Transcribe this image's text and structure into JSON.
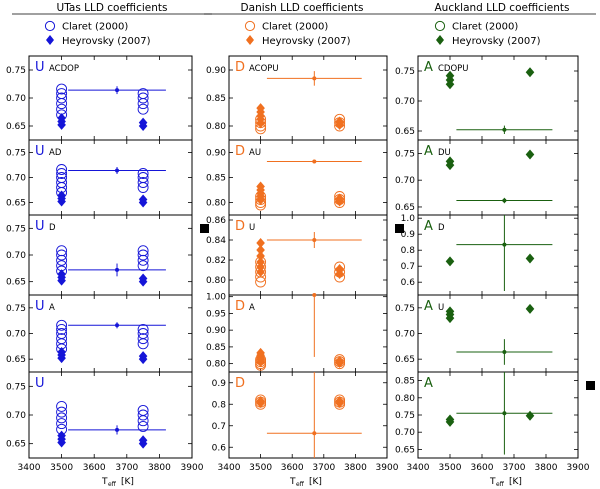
{
  "chart_data": {
    "type": "scatter",
    "description_panels": "3 columns x 5 rows of scatter panels with error bars",
    "xlabel": "T_eff [K]",
    "xlabel_main": "T",
    "xlabel_sub": "eff",
    "xlabel_unit": "[K]",
    "xlim": [
      3400,
      3900
    ],
    "xticks": [
      3400,
      3500,
      3600,
      3700,
      3800,
      3900
    ],
    "columns": [
      {
        "title": "UTas LLD coefficients",
        "letter": "U",
        "color": "#1515d8",
        "legend": [
          "Claret (2000)",
          "Heyrovsky (2007)"
        ],
        "panels": [
          {
            "label": "ACDOP",
            "ylim": [
              0.625,
              0.775
            ],
            "yticks": [
              0.65,
              0.7,
              0.75
            ],
            "claret": {
              "3500": [
                0.67,
                0.68,
                0.69,
                0.7,
                0.708,
                0.716
              ],
              "3750": [
                0.68,
                0.69,
                0.7,
                0.708
              ]
            },
            "heyrovsky": {
              "3500": [
                0.652,
                0.658,
                0.664
              ],
              "3750": [
                0.65,
                0.656
              ]
            },
            "measurement": {
              "x": 3670,
              "y": 0.714,
              "xerr": 150,
              "yerr": 0.007
            },
            "square": false
          },
          {
            "label": "AD",
            "ylim": [
              0.625,
              0.775
            ],
            "yticks": [
              0.65,
              0.7,
              0.75
            ],
            "claret": {
              "3500": [
                0.67,
                0.68,
                0.69,
                0.7,
                0.708,
                0.716
              ],
              "3750": [
                0.68,
                0.69,
                0.7,
                0.708
              ]
            },
            "heyrovsky": {
              "3500": [
                0.652,
                0.658,
                0.664
              ],
              "3750": [
                0.65,
                0.656
              ]
            },
            "measurement": {
              "x": 3670,
              "y": 0.714,
              "xerr": 150,
              "yerr": 0.007
            },
            "square": false
          },
          {
            "label": "D",
            "ylim": [
              0.625,
              0.775
            ],
            "yticks": [
              0.65,
              0.7,
              0.75
            ],
            "claret": {
              "3500": [
                0.67,
                0.68,
                0.69,
                0.7,
                0.708
              ],
              "3750": [
                0.68,
                0.69,
                0.7,
                0.708
              ]
            },
            "heyrovsky": {
              "3500": [
                0.652,
                0.658,
                0.664
              ],
              "3750": [
                0.65,
                0.656
              ]
            },
            "measurement": {
              "x": 3670,
              "y": 0.672,
              "xerr": 150,
              "yerr": 0.012
            },
            "square": true
          },
          {
            "label": "A",
            "ylim": [
              0.625,
              0.775
            ],
            "yticks": [
              0.65,
              0.7,
              0.75
            ],
            "claret": {
              "3500": [
                0.67,
                0.68,
                0.69,
                0.7,
                0.708,
                0.716
              ],
              "3750": [
                0.68,
                0.69,
                0.7,
                0.708
              ]
            },
            "heyrovsky": {
              "3500": [
                0.652,
                0.658,
                0.664
              ],
              "3750": [
                0.65,
                0.656
              ]
            },
            "measurement": {
              "x": 3670,
              "y": 0.716,
              "xerr": 150,
              "yerr": 0.006
            },
            "square": false
          },
          {
            "label": "",
            "ylim": [
              0.625,
              0.775
            ],
            "yticks": [
              0.65,
              0.7,
              0.75
            ],
            "claret": {
              "3500": [
                0.675,
                0.685,
                0.695,
                0.705,
                0.715
              ],
              "3750": [
                0.68,
                0.69,
                0.7,
                0.708
              ]
            },
            "heyrovsky": {
              "3500": [
                0.652,
                0.658,
                0.664
              ],
              "3750": [
                0.65,
                0.656
              ]
            },
            "measurement": {
              "x": 3670,
              "y": 0.674,
              "xerr": 150,
              "yerr": 0.008
            },
            "square": false
          }
        ]
      },
      {
        "title": "Danish LLD coefficients",
        "letter": "D",
        "color": "#f07020",
        "legend": [
          "Claret (2000)",
          "Heyrovsky (2007)"
        ],
        "panels": [
          {
            "label": "ACOPU",
            "ylim": [
              0.775,
              0.925
            ],
            "yticks": [
              0.8,
              0.85,
              0.9
            ],
            "claret": {
              "3500": [
                0.795,
                0.8,
                0.806,
                0.812
              ],
              "3750": [
                0.8,
                0.806,
                0.812
              ]
            },
            "heyrovsky": {
              "3500": [
                0.805,
                0.812,
                0.818,
                0.825,
                0.832
              ],
              "3750": [
                0.802,
                0.808
              ]
            },
            "measurement": {
              "x": 3670,
              "y": 0.885,
              "xerr": 150,
              "yerr": 0.013
            },
            "square": false
          },
          {
            "label": "AU",
            "ylim": [
              0.775,
              0.925
            ],
            "yticks": [
              0.8,
              0.85,
              0.9
            ],
            "claret": {
              "3500": [
                0.795,
                0.8,
                0.806,
                0.812
              ],
              "3750": [
                0.8,
                0.806,
                0.812
              ]
            },
            "heyrovsky": {
              "3500": [
                0.805,
                0.812,
                0.818,
                0.825,
                0.832
              ],
              "3750": [
                0.802,
                0.808
              ]
            },
            "measurement": {
              "x": 3670,
              "y": 0.882,
              "xerr": 150,
              "yerr": 0.004
            },
            "square": false
          },
          {
            "label": "U",
            "ylim": [
              0.785,
              0.865
            ],
            "yticks": [
              0.8,
              0.82,
              0.84,
              0.86
            ],
            "claret": {
              "3500": [
                0.798,
                0.803,
                0.808,
                0.813,
                0.818
              ],
              "3750": [
                0.803,
                0.808,
                0.813
              ]
            },
            "heyrovsky": {
              "3500": [
                0.808,
                0.813,
                0.818,
                0.824,
                0.83,
                0.837
              ],
              "3750": [
                0.806,
                0.811
              ]
            },
            "measurement": {
              "x": 3670,
              "y": 0.84,
              "xerr": 150,
              "yerr": 0.008
            },
            "square": true
          },
          {
            "label": "A",
            "ylim": [
              0.775,
              1.005
            ],
            "yticks": [
              0.8,
              0.85,
              0.9,
              0.95,
              1.0
            ],
            "claret": {
              "3500": [
                0.795,
                0.8,
                0.806,
                0.812
              ],
              "3750": [
                0.8,
                0.806,
                0.812
              ]
            },
            "heyrovsky": {
              "3500": [
                0.805,
                0.812,
                0.818,
                0.825,
                0.832
              ],
              "3750": [
                0.802,
                0.808
              ]
            },
            "measurement": {
              "x": 3670,
              "y": 1.005,
              "xerr": 0,
              "yerr": 0.185
            },
            "square": false
          },
          {
            "label": "",
            "ylim": [
              0.55,
              0.95
            ],
            "yticks": [
              0.6,
              0.7,
              0.8,
              0.9
            ],
            "claret": {
              "3500": [
                0.8,
                0.81,
                0.82
              ],
              "3750": [
                0.8,
                0.81,
                0.82
              ]
            },
            "heyrovsky": {
              "3500": [
                0.805,
                0.815
              ],
              "3750": [
                0.805,
                0.815
              ]
            },
            "measurement": {
              "x": 3670,
              "y": 0.665,
              "xerr": 150,
              "yerr": 0.3
            },
            "square": false
          }
        ]
      },
      {
        "title": "Auckland LLD coefficients",
        "letter": "A",
        "color": "#1a6010",
        "legend": [
          "Claret (2000)",
          "Heyrovsky (2007)"
        ],
        "panels": [
          {
            "label": "CDOPU",
            "ylim": [
              0.635,
              0.775
            ],
            "yticks": [
              0.65,
              0.7,
              0.75
            ],
            "claret": {
              "3500": [],
              "3750": []
            },
            "heyrovsky": {
              "3500": [
                0.728,
                0.735,
                0.742
              ],
              "3750": [
                0.748
              ]
            },
            "measurement": {
              "x": 3670,
              "y": 0.652,
              "xerr": 150,
              "yerr": 0.007
            },
            "square": false
          },
          {
            "label": "DU",
            "ylim": [
              0.635,
              0.775
            ],
            "yticks": [
              0.65,
              0.7,
              0.75
            ],
            "claret": {
              "3500": [],
              "3750": []
            },
            "heyrovsky": {
              "3500": [
                0.728,
                0.735
              ],
              "3750": [
                0.748
              ]
            },
            "measurement": {
              "x": 3670,
              "y": 0.662,
              "xerr": 150,
              "yerr": 0.005
            },
            "square": false
          },
          {
            "label": "D",
            "ylim": [
              0.52,
              1.02
            ],
            "yticks": [
              0.6,
              0.7,
              0.8,
              0.9,
              1.0
            ],
            "claret": {
              "3500": [],
              "3750": []
            },
            "heyrovsky": {
              "3500": [
                0.73
              ],
              "3750": [
                0.748
              ]
            },
            "measurement": {
              "x": 3670,
              "y": 0.835,
              "xerr": 150,
              "yerr": 0.29
            },
            "square": false
          },
          {
            "label": "U",
            "ylim": [
              0.625,
              0.775
            ],
            "yticks": [
              0.65,
              0.7,
              0.75
            ],
            "claret": {
              "3500": [],
              "3750": []
            },
            "heyrovsky": {
              "3500": [
                0.73,
                0.737,
                0.743
              ],
              "3750": [
                0.748
              ]
            },
            "measurement": {
              "x": 3670,
              "y": 0.664,
              "xerr": 150,
              "yerr": 0.025
            },
            "square": false
          },
          {
            "label": "",
            "ylim": [
              0.625,
              0.875
            ],
            "yticks": [
              0.65,
              0.7,
              0.75,
              0.8,
              0.85
            ],
            "claret": {
              "3500": [],
              "3750": []
            },
            "heyrovsky": {
              "3500": [
                0.73,
                0.737
              ],
              "3750": [
                0.748
              ]
            },
            "measurement": {
              "x": 3670,
              "y": 0.755,
              "xerr": 150,
              "yerr": 0.12
            },
            "square": true
          }
        ]
      }
    ]
  }
}
